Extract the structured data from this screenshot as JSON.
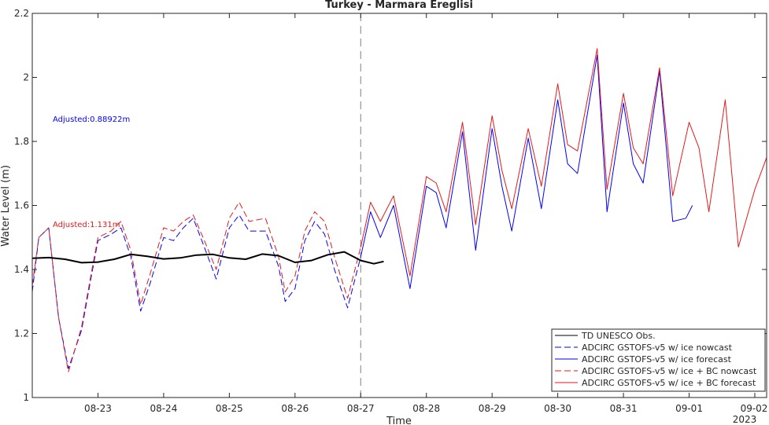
{
  "chart_data": {
    "type": "line",
    "title": "Turkey - Marmara Ereglisi",
    "xlabel": "Time",
    "ylabel": "Water Level (m)",
    "ylim": [
      1.0,
      2.2
    ],
    "yticks": [
      "1",
      "1.2",
      "1.4",
      "1.6",
      "1.8",
      "2",
      "2.2"
    ],
    "ytick_values": [
      1.0,
      1.2,
      1.4,
      1.6,
      1.8,
      2.0,
      2.2
    ],
    "xlim_days": [
      22.0,
      33.18
    ],
    "xticks": [
      "08-23",
      "08-24",
      "08-25",
      "08-26",
      "08-27",
      "08-28",
      "08-29",
      "08-30",
      "08-31",
      "09-01",
      "09-02"
    ],
    "xtick_days": [
      23,
      24,
      25,
      26,
      27,
      28,
      29,
      30,
      31,
      32,
      33
    ],
    "x_secondary_label": "2023",
    "forecast_start_day": 27.0,
    "grid": false,
    "legend_position": "bottom-right",
    "annotations": [
      {
        "text": "Adjusted:0.88922m",
        "color": "#0000ff",
        "x_day": 22.3,
        "y": 1.873
      },
      {
        "text": "Adjusted:1.131m",
        "color": "#e41a1c",
        "x_day": 22.3,
        "y": 1.537
      }
    ],
    "series": [
      {
        "name": "TD UNESCO Obs.",
        "color": "#000000",
        "style": "solid",
        "x_days": [
          22.0,
          22.25,
          22.5,
          22.75,
          23.0,
          23.25,
          23.5,
          23.75,
          24.0,
          24.25,
          24.5,
          24.75,
          25.0,
          25.25,
          25.5,
          25.75,
          26.0,
          26.25,
          26.5,
          26.75,
          27.0,
          27.2,
          27.35
        ],
        "values": [
          1.435,
          1.437,
          1.432,
          1.421,
          1.423,
          1.432,
          1.447,
          1.441,
          1.433,
          1.436,
          1.445,
          1.447,
          1.436,
          1.432,
          1.448,
          1.443,
          1.422,
          1.428,
          1.446,
          1.455,
          1.428,
          1.418,
          1.425
        ]
      },
      {
        "name": "ADCIRC GSTOFS-v5 w/ ice nowcast",
        "color": "#0000ff",
        "style": "dashed",
        "x_days": [
          22.0,
          22.1,
          22.25,
          22.4,
          22.55,
          22.75,
          22.9,
          23.0,
          23.2,
          23.35,
          23.5,
          23.65,
          23.8,
          24.0,
          24.15,
          24.3,
          24.45,
          24.6,
          24.8,
          25.0,
          25.15,
          25.3,
          25.55,
          25.75,
          25.85,
          26.0,
          26.15,
          26.3,
          26.45,
          26.6,
          26.8,
          27.0
        ],
        "values": [
          1.33,
          1.5,
          1.53,
          1.25,
          1.09,
          1.21,
          1.38,
          1.49,
          1.51,
          1.53,
          1.44,
          1.27,
          1.36,
          1.5,
          1.49,
          1.53,
          1.56,
          1.48,
          1.37,
          1.53,
          1.57,
          1.52,
          1.52,
          1.41,
          1.3,
          1.34,
          1.49,
          1.55,
          1.51,
          1.4,
          1.28,
          1.44
        ]
      },
      {
        "name": "ADCIRC GSTOFS-v5 w/ ice forecast",
        "color": "#0000ff",
        "style": "solid",
        "x_days": [
          27.0,
          27.15,
          27.3,
          27.5,
          27.75,
          28.0,
          28.15,
          28.3,
          28.55,
          28.75,
          29.0,
          29.15,
          29.3,
          29.55,
          29.75,
          30.0,
          30.15,
          30.3,
          30.6,
          30.75,
          31.0,
          31.15,
          31.3,
          31.55,
          31.75,
          31.95,
          32.05
        ],
        "values": [
          1.44,
          1.58,
          1.5,
          1.6,
          1.34,
          1.66,
          1.64,
          1.53,
          1.83,
          1.46,
          1.84,
          1.66,
          1.52,
          1.81,
          1.59,
          1.93,
          1.73,
          1.7,
          2.07,
          1.58,
          1.92,
          1.73,
          1.67,
          2.02,
          1.55,
          1.56,
          1.6
        ]
      },
      {
        "name": "ADCIRC GSTOFS-v5 w/ ice + BC nowcast",
        "color": "#e41a1c",
        "style": "dashed",
        "x_days": [
          22.0,
          22.1,
          22.25,
          22.4,
          22.55,
          22.75,
          22.9,
          23.0,
          23.2,
          23.35,
          23.5,
          23.65,
          23.8,
          24.0,
          24.15,
          24.3,
          24.45,
          24.6,
          24.8,
          25.0,
          25.15,
          25.3,
          25.55,
          25.75,
          25.85,
          26.0,
          26.15,
          26.3,
          26.45,
          26.6,
          26.8,
          27.0
        ],
        "values": [
          1.35,
          1.5,
          1.53,
          1.25,
          1.08,
          1.22,
          1.39,
          1.5,
          1.52,
          1.55,
          1.46,
          1.29,
          1.39,
          1.53,
          1.52,
          1.55,
          1.57,
          1.5,
          1.4,
          1.56,
          1.61,
          1.55,
          1.56,
          1.44,
          1.33,
          1.38,
          1.52,
          1.58,
          1.55,
          1.44,
          1.31,
          1.47
        ]
      },
      {
        "name": "ADCIRC GSTOFS-v5 w/ ice + BC forecast",
        "color": "#e41a1c",
        "style": "solid",
        "x_days": [
          27.0,
          27.15,
          27.3,
          27.5,
          27.75,
          28.0,
          28.15,
          28.3,
          28.55,
          28.75,
          29.0,
          29.15,
          29.3,
          29.55,
          29.75,
          30.0,
          30.15,
          30.3,
          30.6,
          30.75,
          31.0,
          31.15,
          31.3,
          31.55,
          31.75,
          32.0,
          32.15,
          32.3,
          32.55,
          32.75,
          33.0,
          33.18
        ],
        "values": [
          1.47,
          1.61,
          1.55,
          1.63,
          1.38,
          1.69,
          1.67,
          1.58,
          1.86,
          1.54,
          1.88,
          1.71,
          1.59,
          1.84,
          1.66,
          1.98,
          1.79,
          1.77,
          2.09,
          1.65,
          1.95,
          1.78,
          1.73,
          2.03,
          1.63,
          1.86,
          1.78,
          1.58,
          1.93,
          1.47,
          1.65,
          1.75
        ]
      }
    ]
  }
}
